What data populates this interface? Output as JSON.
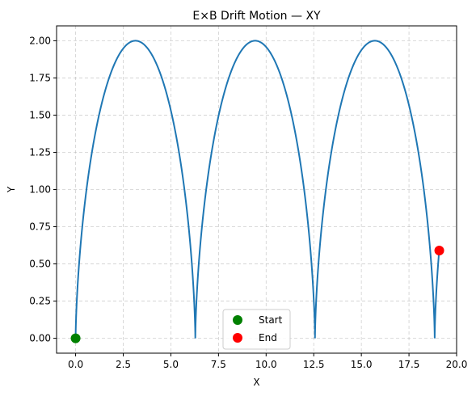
{
  "chart_data": {
    "type": "line",
    "title": "E×B Drift Motion — XY",
    "xlabel": "X",
    "ylabel": "Y",
    "xlim": [
      -1.0,
      20.0
    ],
    "ylim": [
      -0.1,
      2.1
    ],
    "x_ticks": [
      0.0,
      2.5,
      5.0,
      7.5,
      10.0,
      12.5,
      15.0,
      17.5,
      20.0
    ],
    "x_tick_labels": [
      "0.0",
      "2.5",
      "5.0",
      "7.5",
      "10.0",
      "12.5",
      "15.0",
      "17.5",
      "20.0"
    ],
    "y_ticks": [
      0.0,
      0.25,
      0.5,
      0.75,
      1.0,
      1.25,
      1.5,
      1.75,
      2.0
    ],
    "y_tick_labels": [
      "0.00",
      "0.25",
      "0.50",
      "0.75",
      "1.00",
      "1.25",
      "1.50",
      "1.75",
      "2.00"
    ],
    "grid": true,
    "legend_position": "bottom-center",
    "series": [
      {
        "kind": "cycloid",
        "radius": 1.0,
        "t_range": [
          0.0,
          20.0
        ],
        "color": "#1f77b4"
      }
    ],
    "markers": [
      {
        "name": "Start",
        "x": 0.0,
        "y": 0.0,
        "color": "#008000"
      },
      {
        "name": "End",
        "x": 19.09,
        "y": 0.59,
        "color": "#ff0000"
      }
    ]
  }
}
